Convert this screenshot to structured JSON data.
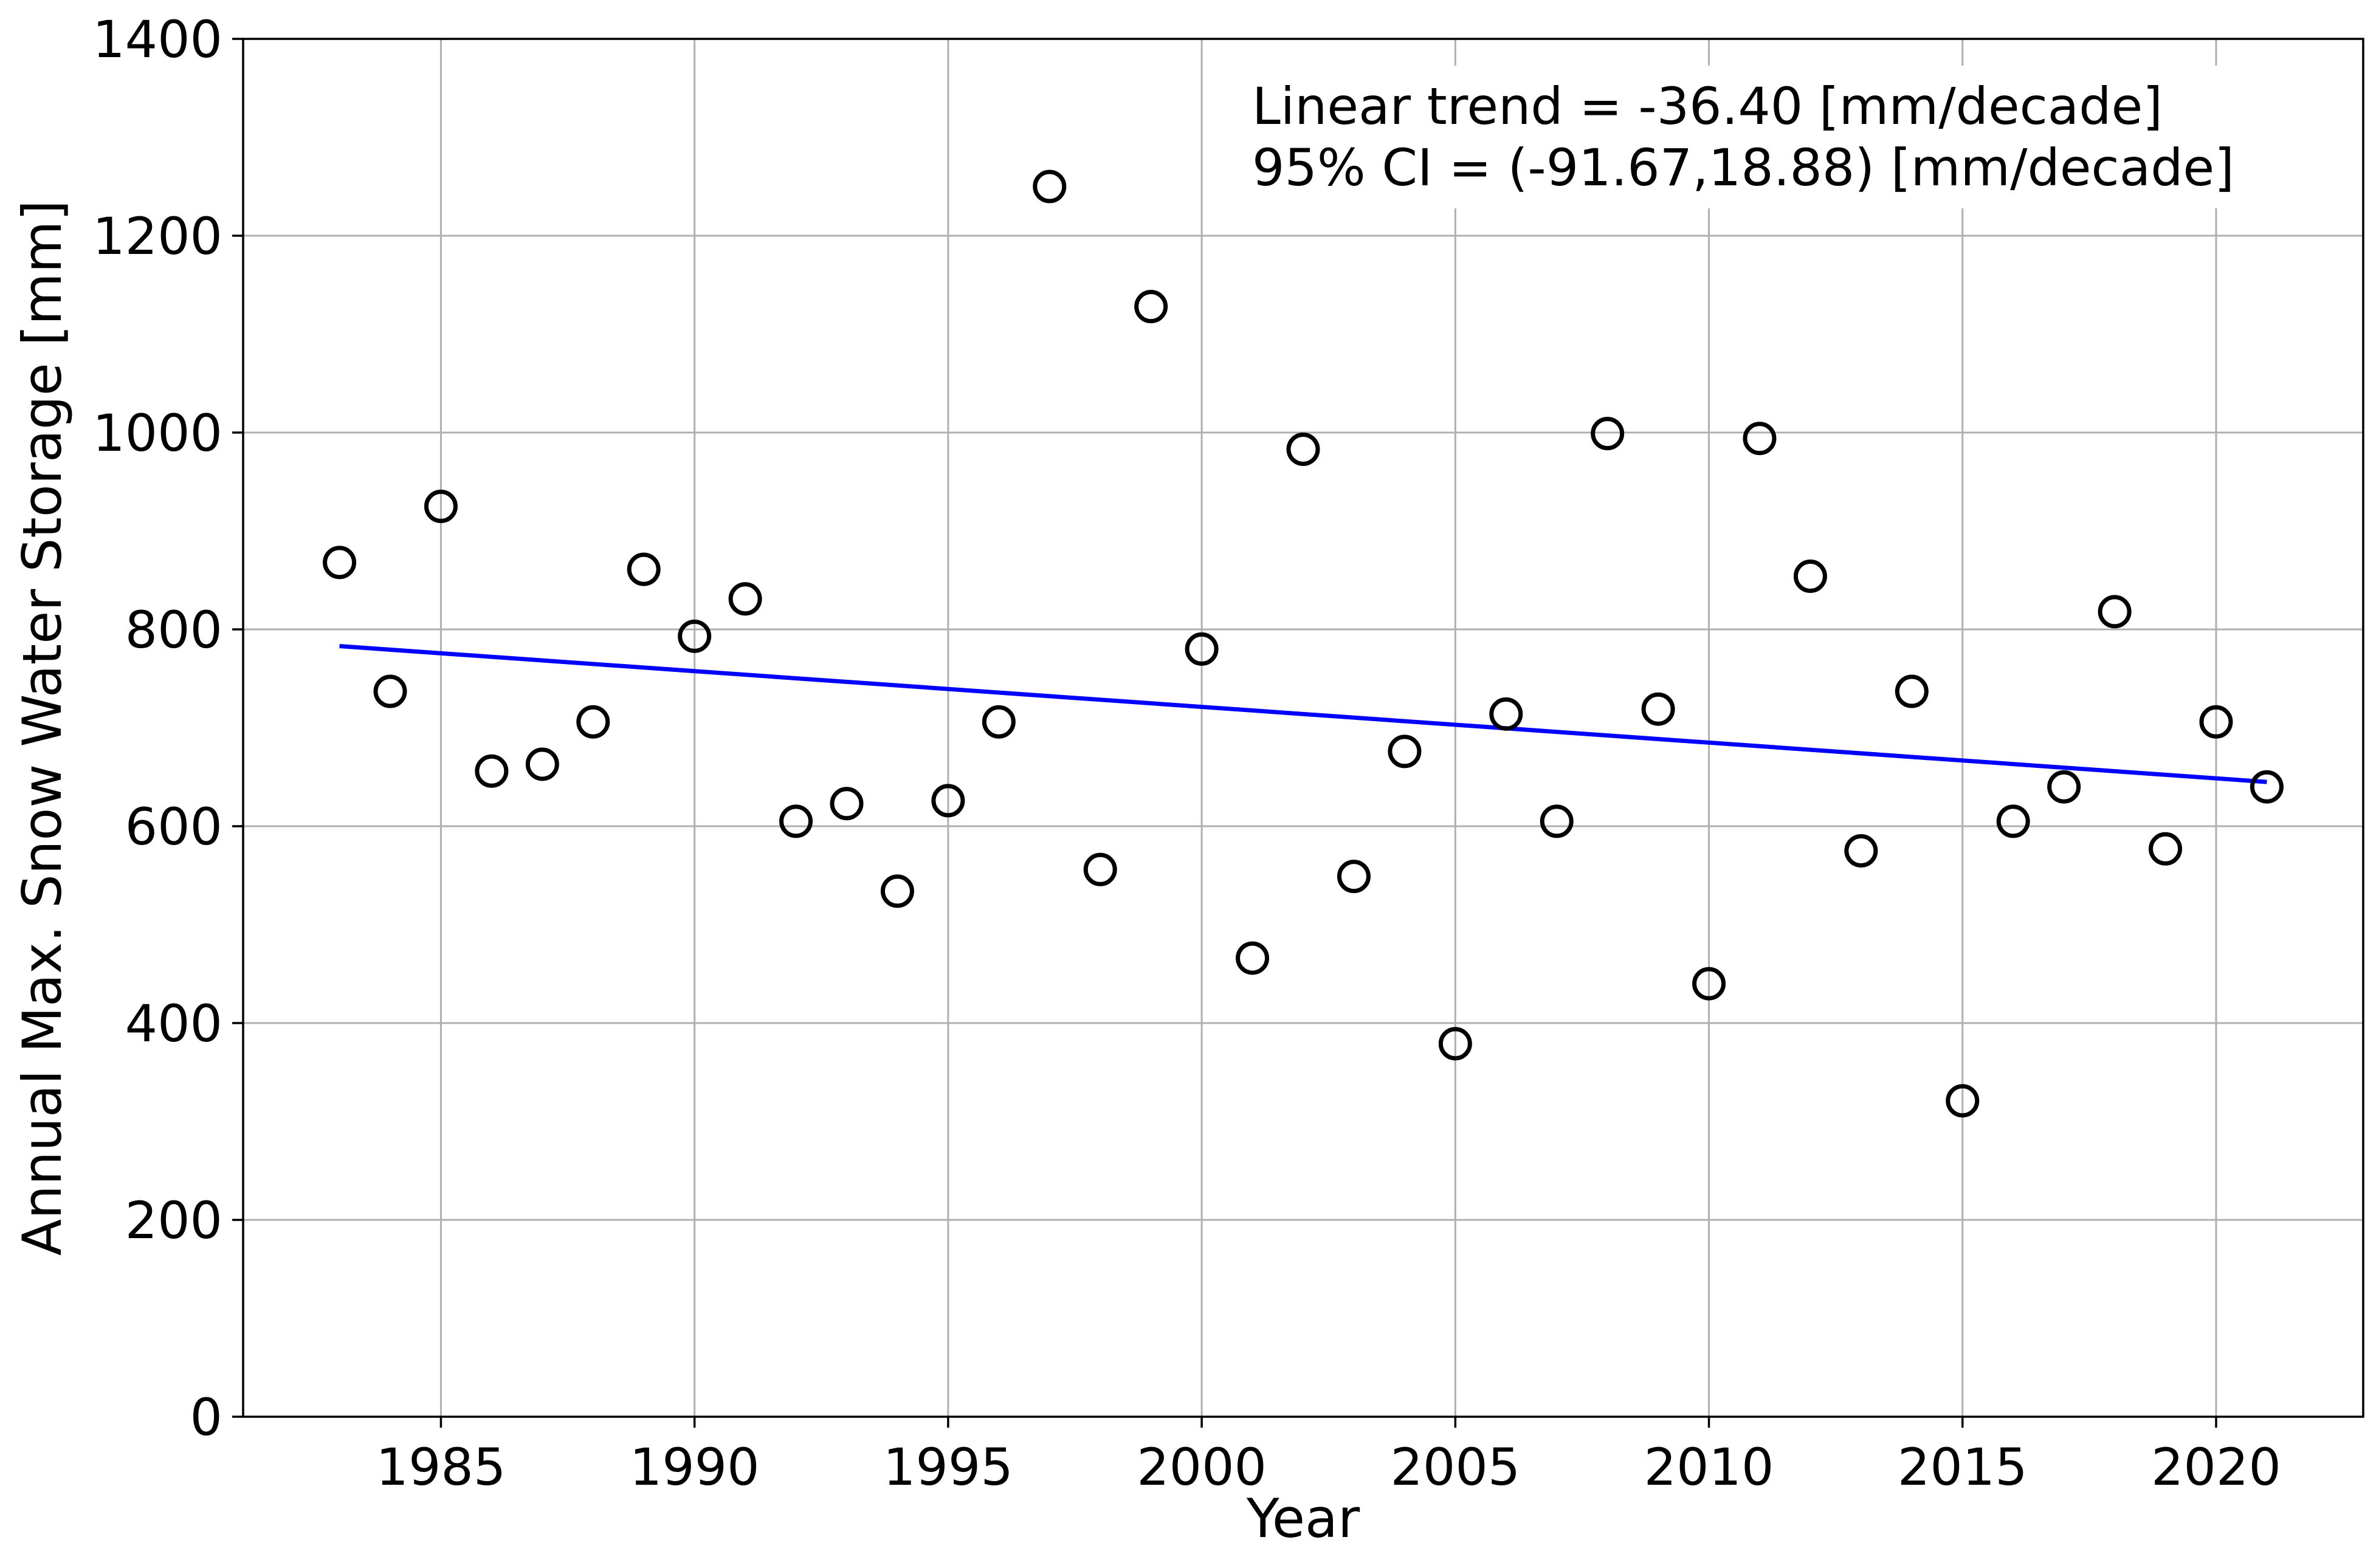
{
  "chart_data": {
    "type": "scatter",
    "title": "",
    "xlabel": "Year",
    "ylabel": "Annual Max. Snow Water Storage [mm]",
    "xlim": [
      1981.1,
      2022.9
    ],
    "ylim": [
      0,
      1400
    ],
    "xticks": [
      1985,
      1990,
      1995,
      2000,
      2005,
      2010,
      2015,
      2020
    ],
    "yticks": [
      0,
      200,
      400,
      600,
      800,
      1000,
      1200,
      1400
    ],
    "grid": true,
    "annotations": [
      "Linear trend = -36.40 [mm/decade]",
      "95% CI = (-91.67,18.88) [mm/decade]"
    ],
    "series": [
      {
        "kind": "scatter",
        "marker": "open-circle",
        "color": "#000000",
        "x": [
          1983,
          1984,
          1985,
          1986,
          1987,
          1988,
          1989,
          1990,
          1991,
          1992,
          1993,
          1994,
          1995,
          1996,
          1997,
          1998,
          1999,
          2000,
          2001,
          2002,
          2003,
          2004,
          2005,
          2006,
          2007,
          2008,
          2009,
          2010,
          2011,
          2012,
          2013,
          2014,
          2015,
          2016,
          2017,
          2018,
          2019,
          2020,
          2021
        ],
        "y": [
          868,
          737,
          925,
          656,
          663,
          706,
          861,
          793,
          831,
          605,
          623,
          534,
          626,
          706,
          1250,
          556,
          1128,
          780,
          466,
          983,
          549,
          676,
          379,
          714,
          605,
          999,
          719,
          440,
          994,
          854,
          575,
          737,
          321,
          605,
          640,
          818,
          577,
          706,
          640
        ]
      },
      {
        "kind": "line",
        "color": "#0000ff",
        "x": [
          1983,
          2021
        ],
        "y": [
          783,
          645
        ]
      }
    ]
  }
}
